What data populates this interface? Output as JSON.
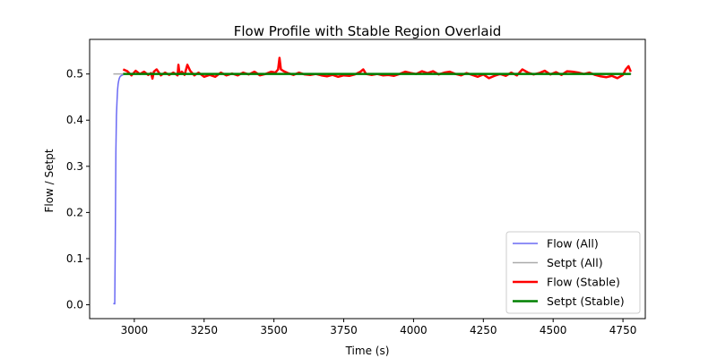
{
  "chart_data": {
    "type": "line",
    "title": "Flow Profile with Stable Region Overlaid",
    "xlabel": "Time (s)",
    "ylabel": "Flow / Setpt",
    "xlim": [
      2840,
      4830
    ],
    "ylim": [
      -0.03,
      0.575
    ],
    "x_ticks": [
      3000,
      3250,
      3500,
      3750,
      4000,
      4250,
      4500,
      4750
    ],
    "y_ticks": [
      0.0,
      0.1,
      0.2,
      0.3,
      0.4,
      0.5
    ],
    "x_tick_labels": [
      "3000",
      "3250",
      "3500",
      "3750",
      "4000",
      "4250",
      "4500",
      "4750"
    ],
    "y_tick_labels": [
      "0.0",
      "0.1",
      "0.2",
      "0.3",
      "0.4",
      "0.5"
    ],
    "grid": false,
    "legend_position": "lower right",
    "series": [
      {
        "name": "Flow (All)",
        "color": "#6a6af4",
        "x": [
          2925,
          2930,
          2932,
          2934,
          2936,
          2938,
          2940,
          2942,
          2944,
          2946,
          2948,
          2950,
          2955,
          2960
        ],
        "y": [
          0.003,
          0.002,
          0.15,
          0.33,
          0.41,
          0.44,
          0.465,
          0.478,
          0.485,
          0.49,
          0.493,
          0.495,
          0.497,
          0.498
        ]
      },
      {
        "name": "Setpt (All)",
        "color": "#aaaaaa",
        "x": [
          2925,
          4780
        ],
        "y": [
          0.5,
          0.5
        ]
      },
      {
        "name": "Flow (Stable)",
        "color": "#ff0000",
        "x": [
          2960,
          2975,
          2990,
          3005,
          3020,
          3035,
          3050,
          3060,
          3065,
          3070,
          3080,
          3095,
          3110,
          3125,
          3140,
          3155,
          3158,
          3162,
          3170,
          3180,
          3190,
          3200,
          3215,
          3230,
          3250,
          3270,
          3290,
          3310,
          3330,
          3350,
          3370,
          3390,
          3410,
          3430,
          3450,
          3470,
          3490,
          3505,
          3515,
          3520,
          3525,
          3535,
          3550,
          3570,
          3590,
          3610,
          3630,
          3650,
          3670,
          3690,
          3710,
          3730,
          3750,
          3770,
          3790,
          3810,
          3820,
          3830,
          3850,
          3870,
          3890,
          3910,
          3930,
          3950,
          3970,
          3990,
          4010,
          4030,
          4050,
          4070,
          4090,
          4110,
          4130,
          4150,
          4170,
          4190,
          4210,
          4230,
          4250,
          4270,
          4290,
          4310,
          4330,
          4350,
          4370,
          4390,
          4410,
          4430,
          4450,
          4470,
          4490,
          4510,
          4530,
          4550,
          4570,
          4590,
          4610,
          4630,
          4650,
          4670,
          4690,
          4710,
          4730,
          4750,
          4760,
          4770,
          4778
        ],
        "y": [
          0.51,
          0.506,
          0.497,
          0.507,
          0.5,
          0.505,
          0.498,
          0.502,
          0.49,
          0.505,
          0.51,
          0.497,
          0.503,
          0.498,
          0.503,
          0.497,
          0.52,
          0.5,
          0.505,
          0.498,
          0.52,
          0.507,
          0.497,
          0.503,
          0.494,
          0.498,
          0.494,
          0.503,
          0.497,
          0.501,
          0.497,
          0.503,
          0.499,
          0.505,
          0.497,
          0.5,
          0.505,
          0.503,
          0.51,
          0.535,
          0.51,
          0.506,
          0.502,
          0.498,
          0.503,
          0.499,
          0.498,
          0.5,
          0.497,
          0.495,
          0.498,
          0.494,
          0.497,
          0.496,
          0.499,
          0.505,
          0.51,
          0.5,
          0.498,
          0.5,
          0.497,
          0.498,
          0.496,
          0.5,
          0.505,
          0.502,
          0.5,
          0.506,
          0.502,
          0.506,
          0.499,
          0.503,
          0.505,
          0.5,
          0.497,
          0.502,
          0.498,
          0.494,
          0.499,
          0.491,
          0.496,
          0.5,
          0.496,
          0.503,
          0.497,
          0.51,
          0.503,
          0.499,
          0.502,
          0.507,
          0.499,
          0.504,
          0.498,
          0.506,
          0.505,
          0.503,
          0.5,
          0.503,
          0.498,
          0.495,
          0.493,
          0.496,
          0.491,
          0.498,
          0.51,
          0.517,
          0.505
        ]
      },
      {
        "name": "Setpt (Stable)",
        "color": "#008000",
        "x": [
          2960,
          4778
        ],
        "y": [
          0.5,
          0.5
        ]
      }
    ]
  }
}
